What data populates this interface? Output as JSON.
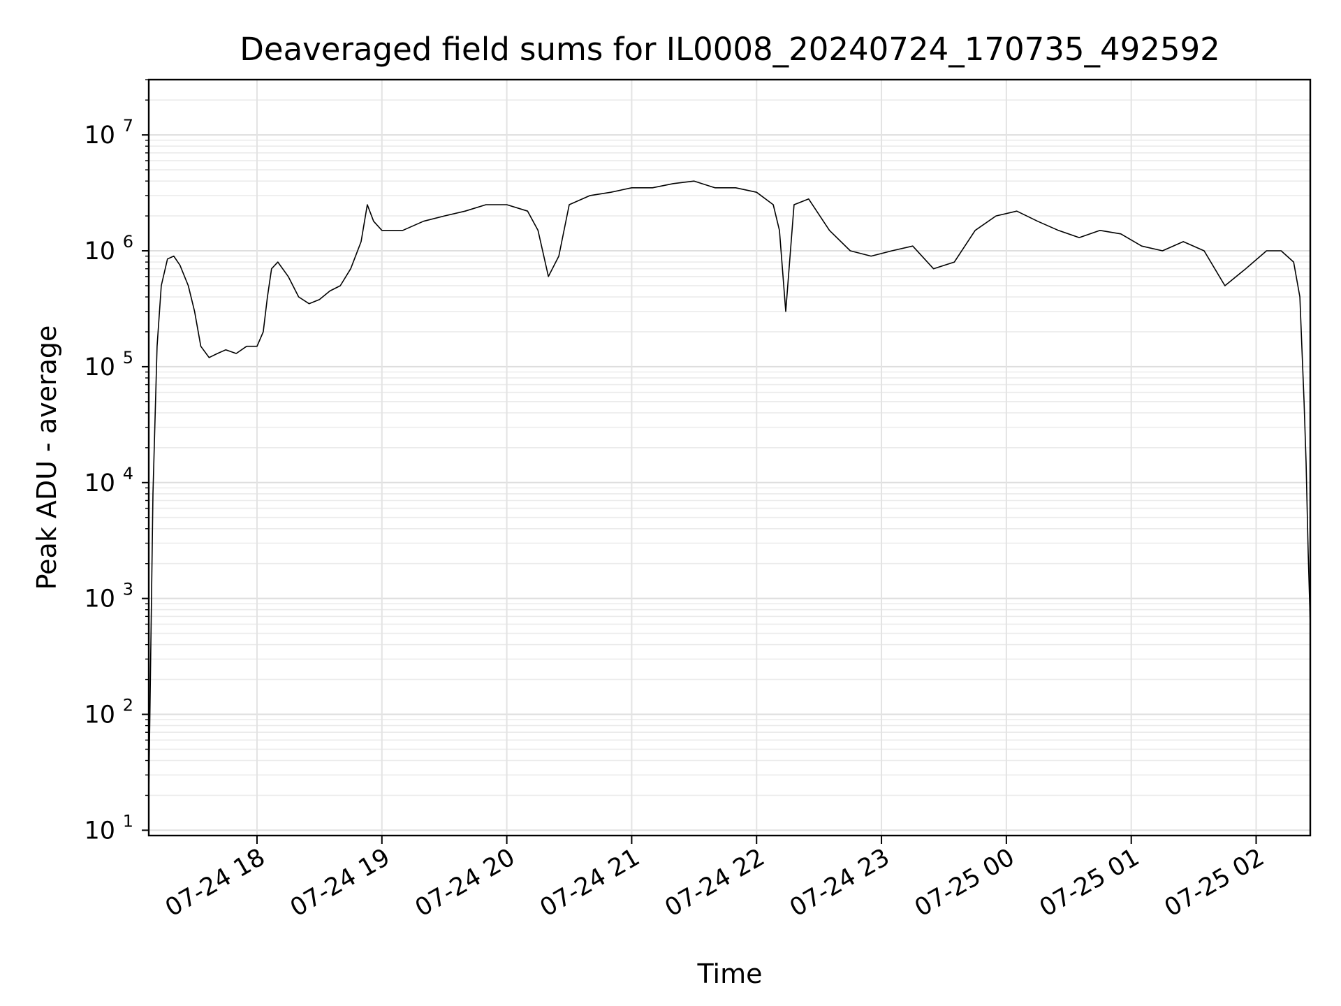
{
  "chart_data": {
    "type": "line",
    "title": "Deaveraged field sums for IL0008_20240724_170735_492592",
    "xlabel": "Time",
    "ylabel": "Peak ADU - average",
    "yscale": "log",
    "ylim": [
      9,
      30000000
    ],
    "xlim": [
      "2024-07-24 17:08",
      "2024-07-25 02:26"
    ],
    "x_ticks": [
      {
        "value": "2024-07-24 18:00",
        "label": "07-24 18"
      },
      {
        "value": "2024-07-24 19:00",
        "label": "07-24 19"
      },
      {
        "value": "2024-07-24 20:00",
        "label": "07-24 20"
      },
      {
        "value": "2024-07-24 21:00",
        "label": "07-24 21"
      },
      {
        "value": "2024-07-24 22:00",
        "label": "07-24 22"
      },
      {
        "value": "2024-07-24 23:00",
        "label": "07-24 23"
      },
      {
        "value": "2024-07-25 00:00",
        "label": "07-25 00"
      },
      {
        "value": "2024-07-25 01:00",
        "label": "07-25 01"
      },
      {
        "value": "2024-07-25 02:00",
        "label": "07-25 02"
      }
    ],
    "y_ticks": [
      {
        "value": 10,
        "base": "10",
        "exp": "1"
      },
      {
        "value": 100,
        "base": "10",
        "exp": "2"
      },
      {
        "value": 1000,
        "base": "10",
        "exp": "3"
      },
      {
        "value": 10000,
        "base": "10",
        "exp": "4"
      },
      {
        "value": 100000,
        "base": "10",
        "exp": "5"
      },
      {
        "value": 1000000,
        "base": "10",
        "exp": "6"
      },
      {
        "value": 10000000,
        "base": "10",
        "exp": "7"
      }
    ],
    "grid": true,
    "line_color": "#000000",
    "series": [
      {
        "x": [
          "2024-07-24 17:08",
          "2024-07-24 17:10",
          "2024-07-24 17:12",
          "2024-07-24 17:14",
          "2024-07-24 17:17",
          "2024-07-24 17:20",
          "2024-07-24 17:23",
          "2024-07-24 17:27",
          "2024-07-24 17:30",
          "2024-07-24 17:33",
          "2024-07-24 17:37",
          "2024-07-24 17:41",
          "2024-07-24 17:45",
          "2024-07-24 17:50",
          "2024-07-24 17:55",
          "2024-07-24 18:00",
          "2024-07-24 18:03",
          "2024-07-24 18:05",
          "2024-07-24 18:07",
          "2024-07-24 18:10",
          "2024-07-24 18:15",
          "2024-07-24 18:20",
          "2024-07-24 18:25",
          "2024-07-24 18:30",
          "2024-07-24 18:35",
          "2024-07-24 18:40",
          "2024-07-24 18:45",
          "2024-07-24 18:50",
          "2024-07-24 18:53",
          "2024-07-24 18:56",
          "2024-07-24 19:00",
          "2024-07-24 19:10",
          "2024-07-24 19:20",
          "2024-07-24 19:30",
          "2024-07-24 19:40",
          "2024-07-24 19:50",
          "2024-07-24 20:00",
          "2024-07-24 20:10",
          "2024-07-24 20:15",
          "2024-07-24 20:20",
          "2024-07-24 20:25",
          "2024-07-24 20:30",
          "2024-07-24 20:40",
          "2024-07-24 20:50",
          "2024-07-24 21:00",
          "2024-07-24 21:10",
          "2024-07-24 21:20",
          "2024-07-24 21:30",
          "2024-07-24 21:40",
          "2024-07-24 21:50",
          "2024-07-24 22:00",
          "2024-07-24 22:08",
          "2024-07-24 22:11",
          "2024-07-24 22:14",
          "2024-07-24 22:18",
          "2024-07-24 22:25",
          "2024-07-24 22:35",
          "2024-07-24 22:45",
          "2024-07-24 22:55",
          "2024-07-24 23:05",
          "2024-07-24 23:15",
          "2024-07-24 23:25",
          "2024-07-24 23:35",
          "2024-07-24 23:45",
          "2024-07-24 23:55",
          "2024-07-25 00:05",
          "2024-07-25 00:15",
          "2024-07-25 00:25",
          "2024-07-25 00:35",
          "2024-07-25 00:45",
          "2024-07-25 00:55",
          "2024-07-25 01:05",
          "2024-07-25 01:15",
          "2024-07-25 01:25",
          "2024-07-25 01:35",
          "2024-07-25 01:45",
          "2024-07-25 01:55",
          "2024-07-25 02:05",
          "2024-07-25 02:12",
          "2024-07-25 02:18",
          "2024-07-25 02:21",
          "2024-07-25 02:23",
          "2024-07-25 02:24",
          "2024-07-25 02:25",
          "2024-07-25 02:26"
        ],
        "y": [
          20,
          8000,
          150000,
          500000,
          850000,
          900000,
          750000,
          500000,
          300000,
          150000,
          120000,
          130000,
          140000,
          130000,
          150000,
          150000,
          200000,
          400000,
          700000,
          800000,
          600000,
          400000,
          350000,
          380000,
          450000,
          500000,
          700000,
          1200000,
          2500000,
          1800000,
          1500000,
          1500000,
          1800000,
          2000000,
          2200000,
          2500000,
          2500000,
          2200000,
          1500000,
          600000,
          900000,
          2500000,
          3000000,
          3200000,
          3500000,
          3500000,
          3800000,
          4000000,
          3500000,
          3500000,
          3200000,
          2500000,
          1500000,
          300000,
          2500000,
          2800000,
          1500000,
          1000000,
          900000,
          1000000,
          1100000,
          700000,
          800000,
          1500000,
          2000000,
          2200000,
          1800000,
          1500000,
          1300000,
          1500000,
          1400000,
          1100000,
          1000000,
          1200000,
          1000000,
          500000,
          700000,
          1000000,
          1000000,
          800000,
          400000,
          50000,
          15000,
          2500,
          600
        ]
      }
    ]
  }
}
